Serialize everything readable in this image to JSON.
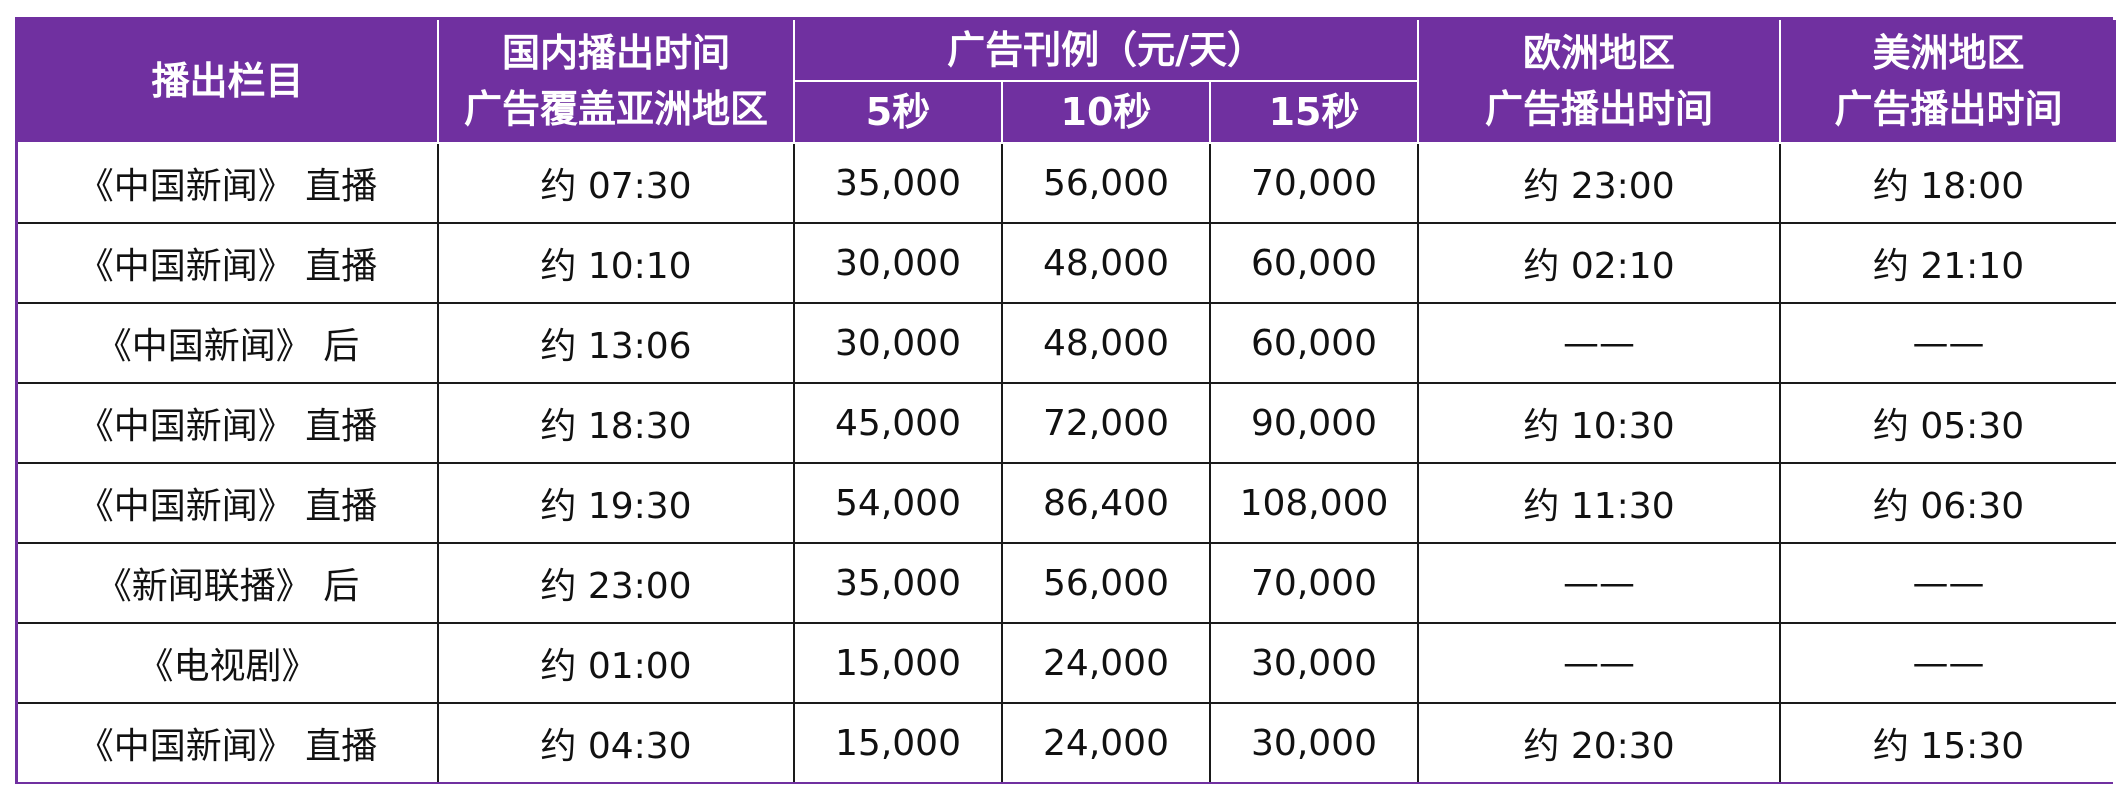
{
  "header": {
    "program": "播出栏目",
    "domestic_line1": "国内播出时间",
    "domestic_line2": "广告覆盖亚洲地区",
    "price_group": "广告刊例（元/天）",
    "sec5": "5秒",
    "sec10": "10秒",
    "sec15": "15秒",
    "europe_line1": "欧洲地区",
    "europe_line2": "广告播出时间",
    "america_line1": "美洲地区",
    "america_line2": "广告播出时间"
  },
  "rows": [
    {
      "program": "《中国新闻》 直播",
      "domestic": "约 07:30",
      "p5": "35,000",
      "p10": "56,000",
      "p15": "70,000",
      "europe": "约 23:00",
      "america": "约 18:00"
    },
    {
      "program": "《中国新闻》 直播",
      "domestic": "约 10:10",
      "p5": "30,000",
      "p10": "48,000",
      "p15": "60,000",
      "europe": "约 02:10",
      "america": "约 21:10"
    },
    {
      "program": "《中国新闻》 后",
      "domestic": "约 13:06",
      "p5": "30,000",
      "p10": "48,000",
      "p15": "60,000",
      "europe": "——",
      "america": "——"
    },
    {
      "program": "《中国新闻》 直播",
      "domestic": "约 18:30",
      "p5": "45,000",
      "p10": "72,000",
      "p15": "90,000",
      "europe": "约 10:30",
      "america": "约 05:30"
    },
    {
      "program": "《中国新闻》 直播",
      "domestic": "约 19:30",
      "p5": "54,000",
      "p10": "86,400",
      "p15": "108,000",
      "europe": "约 11:30",
      "america": "约 06:30"
    },
    {
      "program": "《新闻联播》 后",
      "domestic": "约 23:00",
      "p5": "35,000",
      "p10": "56,000",
      "p15": "70,000",
      "europe": "——",
      "america": "——"
    },
    {
      "program": "《电视剧》",
      "domestic": "约 01:00",
      "p5": "15,000",
      "p10": "24,000",
      "p15": "30,000",
      "europe": "——",
      "america": "——"
    },
    {
      "program": "《中国新闻》 直播",
      "domestic": "约 04:30",
      "p5": "15,000",
      "p10": "24,000",
      "p15": "30,000",
      "europe": "约 20:30",
      "america": "约 15:30"
    }
  ],
  "colors": {
    "header_bg": "#7030a0",
    "header_text": "#ffffff",
    "border": "#1a1a1a"
  }
}
